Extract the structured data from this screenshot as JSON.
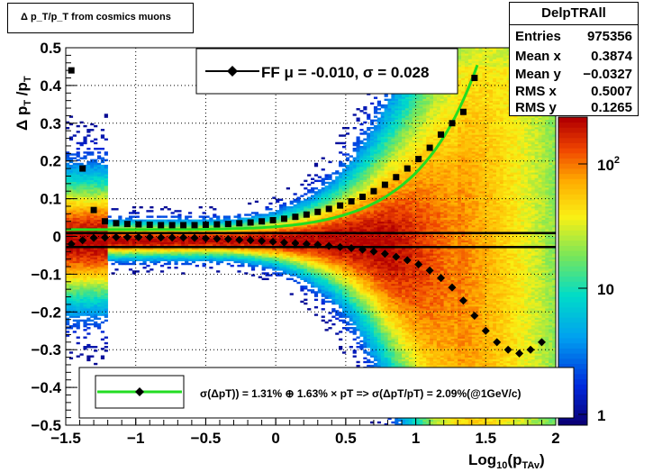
{
  "title": "Δ p_T/p_T from cosmics muons",
  "stats": {
    "name": "DelpTRAll",
    "rows": [
      {
        "label": "Entries",
        "value": "975356"
      },
      {
        "label": "Mean x",
        "value": "0.3874"
      },
      {
        "label": "Mean y",
        "value": "−0.0327"
      },
      {
        "label": "RMS x",
        "value": "0.5007"
      },
      {
        "label": "RMS y",
        "value": "0.1265"
      }
    ]
  },
  "fit_legend": {
    "text": "FF μ = -0.010, σ =   0.028"
  },
  "resolution_legend": {
    "text": "σ(ΔpT)) =  1.31% ⊕  1.63% × pT => σ(ΔpT/pT) =  2.09%(@1GeV/c)"
  },
  "chart_data": {
    "type": "heatmap",
    "xlabel": "Log10(pTAv)",
    "ylabel": "Δ pT /pT",
    "xlim": [
      -1.5,
      2.0
    ],
    "ylim": [
      -0.5,
      0.5
    ],
    "xticks": [
      "−1.5",
      "−1",
      "−0.5",
      "0",
      "0.5",
      "1",
      "1.5",
      "2"
    ],
    "yticks": [
      "−0.5",
      "−0.4",
      "−0.3",
      "−0.2",
      "−0.1",
      "0",
      "0.1",
      "0.2",
      "0.3",
      "0.4",
      "0.5"
    ],
    "z_scale": "log",
    "z_ticks": [
      "1",
      "10",
      "10^2"
    ],
    "grid": true,
    "lines": {
      "upper_y": 0.009,
      "lower_y": -0.028
    },
    "mean_points": {
      "x": [
        -1.46,
        -1.38,
        -1.3,
        -1.22,
        -1.14,
        -1.06,
        -0.98,
        -0.9,
        -0.82,
        -0.74,
        -0.66,
        -0.58,
        -0.5,
        -0.42,
        -0.34,
        -0.26,
        -0.18,
        -0.1,
        -0.02,
        0.06,
        0.14,
        0.22,
        0.3,
        0.38,
        0.46,
        0.54,
        0.62,
        0.7,
        0.78,
        0.86,
        0.94,
        1.02,
        1.1,
        1.18,
        1.26,
        1.34,
        1.42,
        1.5,
        1.58,
        1.66,
        1.74,
        1.82,
        1.9
      ],
      "y": [
        -0.02,
        -0.01,
        -0.004,
        -0.003,
        -0.002,
        -0.002,
        -0.002,
        -0.002,
        -0.003,
        -0.003,
        -0.003,
        -0.004,
        -0.005,
        -0.006,
        -0.007,
        -0.009,
        -0.01,
        -0.012,
        -0.014,
        -0.016,
        -0.018,
        -0.02,
        -0.022,
        -0.025,
        -0.028,
        -0.031,
        -0.035,
        -0.04,
        -0.046,
        -0.054,
        -0.063,
        -0.074,
        -0.09,
        -0.11,
        -0.135,
        -0.17,
        -0.21,
        -0.25,
        -0.28,
        -0.3,
        -0.31,
        -0.3,
        -0.28
      ]
    },
    "sigma_points": {
      "x": [
        -1.46,
        -1.38,
        -1.3,
        -1.22,
        -1.14,
        -1.06,
        -0.98,
        -0.9,
        -0.82,
        -0.74,
        -0.66,
        -0.58,
        -0.5,
        -0.42,
        -0.34,
        -0.26,
        -0.18,
        -0.1,
        -0.02,
        0.06,
        0.14,
        0.22,
        0.3,
        0.38,
        0.46,
        0.54,
        0.62,
        0.7,
        0.78,
        0.86,
        0.94,
        1.02,
        1.1,
        1.18,
        1.26,
        1.34,
        1.42
      ],
      "y": [
        0.44,
        0.18,
        0.07,
        0.04,
        0.035,
        0.033,
        0.032,
        0.031,
        0.03,
        0.03,
        0.03,
        0.03,
        0.031,
        0.032,
        0.033,
        0.035,
        0.037,
        0.04,
        0.043,
        0.047,
        0.052,
        0.058,
        0.065,
        0.073,
        0.082,
        0.093,
        0.105,
        0.12,
        0.137,
        0.157,
        0.18,
        0.205,
        0.235,
        0.27,
        0.3,
        0.33,
        0.42
      ]
    },
    "fit_curve": {
      "a": 0.0131,
      "b": 0.0163
    }
  }
}
